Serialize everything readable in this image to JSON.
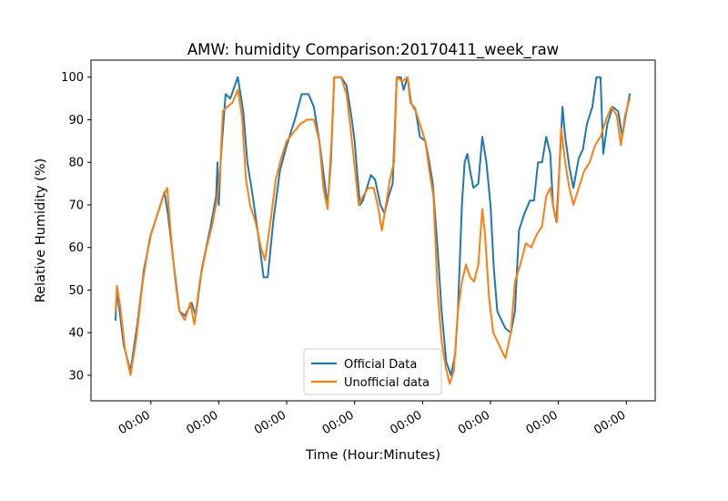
{
  "chart_data": {
    "type": "line",
    "title": "AMW: humidity Comparison:20170411_week_raw",
    "xlabel": "Time (Hour:Minutes)",
    "ylabel": "Relative Humidity (%)",
    "xlim": [
      -0.52,
      7.05
    ],
    "ylim": [
      24,
      104
    ],
    "x_ticks": [
      0,
      1,
      2,
      3,
      4,
      5,
      6,
      7
    ],
    "x_tick_labels": [
      "00:00",
      "00:00",
      "00:00",
      "00:00",
      "00:00",
      "00:00",
      "00:00",
      "00:00"
    ],
    "y_ticks": [
      30,
      40,
      50,
      60,
      70,
      80,
      90,
      100
    ],
    "y_tick_labels": [
      "30",
      "40",
      "50",
      "60",
      "70",
      "80",
      "90",
      "100"
    ],
    "legend_position": "lower-center",
    "grid": false,
    "series": [
      {
        "name": "Official Data",
        "color": "#1f77b4",
        "points": [
          [
            -0.52,
            43
          ],
          [
            -0.5,
            50
          ],
          [
            -0.46,
            45
          ],
          [
            -0.4,
            37
          ],
          [
            -0.3,
            31
          ],
          [
            -0.2,
            42
          ],
          [
            -0.1,
            55
          ],
          [
            0,
            63
          ],
          [
            0.1,
            68
          ],
          [
            0.2,
            73
          ],
          [
            0.25,
            68
          ],
          [
            0.33,
            57
          ],
          [
            0.42,
            45
          ],
          [
            0.5,
            44
          ],
          [
            0.6,
            47
          ],
          [
            0.66,
            44
          ],
          [
            0.75,
            55
          ],
          [
            0.88,
            65
          ],
          [
            0.96,
            72
          ],
          [
            0.98,
            80
          ],
          [
            1.0,
            70
          ],
          [
            1.03,
            81
          ],
          [
            1.1,
            96
          ],
          [
            1.17,
            95
          ],
          [
            1.28,
            100
          ],
          [
            1.36,
            92
          ],
          [
            1.42,
            80
          ],
          [
            1.5,
            72
          ],
          [
            1.58,
            63
          ],
          [
            1.66,
            53
          ],
          [
            1.72,
            53
          ],
          [
            1.8,
            66
          ],
          [
            1.9,
            78
          ],
          [
            2.0,
            84
          ],
          [
            2.12,
            90
          ],
          [
            2.22,
            96
          ],
          [
            2.32,
            96
          ],
          [
            2.4,
            93
          ],
          [
            2.48,
            85
          ],
          [
            2.56,
            75
          ],
          [
            2.6,
            70
          ],
          [
            2.65,
            80
          ],
          [
            2.7,
            100
          ],
          [
            2.8,
            100
          ],
          [
            2.88,
            98
          ],
          [
            2.95,
            91
          ],
          [
            3.0,
            85
          ],
          [
            3.04,
            77
          ],
          [
            3.08,
            70
          ],
          [
            3.12,
            71
          ],
          [
            3.18,
            74
          ],
          [
            3.24,
            77
          ],
          [
            3.3,
            76
          ],
          [
            3.38,
            70
          ],
          [
            3.44,
            68
          ],
          [
            3.5,
            72
          ],
          [
            3.56,
            75
          ],
          [
            3.62,
            100
          ],
          [
            3.68,
            100
          ],
          [
            3.72,
            97
          ],
          [
            3.78,
            100
          ],
          [
            3.83,
            94
          ],
          [
            3.9,
            92
          ],
          [
            3.96,
            86
          ],
          [
            4.04,
            85
          ],
          [
            4.1,
            80
          ],
          [
            4.15,
            75
          ],
          [
            4.22,
            60
          ],
          [
            4.28,
            45
          ],
          [
            4.35,
            33
          ],
          [
            4.42,
            30
          ],
          [
            4.48,
            35
          ],
          [
            4.52,
            45
          ],
          [
            4.58,
            70
          ],
          [
            4.62,
            80
          ],
          [
            4.66,
            82
          ],
          [
            4.7,
            78
          ],
          [
            4.75,
            74
          ],
          [
            4.82,
            75
          ],
          [
            4.88,
            86
          ],
          [
            4.94,
            80
          ],
          [
            5.0,
            70
          ],
          [
            5.05,
            55
          ],
          [
            5.1,
            45
          ],
          [
            5.16,
            43
          ],
          [
            5.22,
            41
          ],
          [
            5.3,
            40
          ],
          [
            5.36,
            45
          ],
          [
            5.42,
            64
          ],
          [
            5.5,
            68
          ],
          [
            5.58,
            71
          ],
          [
            5.64,
            71
          ],
          [
            5.7,
            80
          ],
          [
            5.76,
            80
          ],
          [
            5.82,
            86
          ],
          [
            5.88,
            82
          ],
          [
            5.92,
            70
          ],
          [
            5.97,
            66
          ],
          [
            6.02,
            80
          ],
          [
            6.06,
            93
          ],
          [
            6.1,
            86
          ],
          [
            6.16,
            79
          ],
          [
            6.22,
            74
          ],
          [
            6.3,
            81
          ],
          [
            6.36,
            83
          ],
          [
            6.42,
            89
          ],
          [
            6.5,
            93
          ],
          [
            6.56,
            100
          ],
          [
            6.62,
            100
          ],
          [
            6.66,
            82
          ],
          [
            6.72,
            89
          ],
          [
            6.8,
            93
          ],
          [
            6.88,
            92
          ],
          [
            6.94,
            86
          ],
          [
            6.98,
            90
          ],
          [
            7.05,
            96
          ]
        ]
      },
      {
        "name": "Unofficial data",
        "color": "#ff7f0e",
        "points": [
          [
            -0.52,
            45
          ],
          [
            -0.5,
            51
          ],
          [
            -0.45,
            46
          ],
          [
            -0.38,
            36
          ],
          [
            -0.3,
            30
          ],
          [
            -0.22,
            38
          ],
          [
            -0.12,
            52
          ],
          [
            -0.02,
            62
          ],
          [
            0.08,
            67
          ],
          [
            0.18,
            72
          ],
          [
            0.24,
            74
          ],
          [
            0.3,
            62
          ],
          [
            0.36,
            52
          ],
          [
            0.42,
            45
          ],
          [
            0.5,
            43
          ],
          [
            0.58,
            47
          ],
          [
            0.64,
            42
          ],
          [
            0.72,
            52
          ],
          [
            0.82,
            60
          ],
          [
            0.9,
            65
          ],
          [
            0.98,
            72
          ],
          [
            1.02,
            78
          ],
          [
            1.06,
            92
          ],
          [
            1.12,
            93
          ],
          [
            1.2,
            94
          ],
          [
            1.28,
            97
          ],
          [
            1.34,
            91
          ],
          [
            1.4,
            76
          ],
          [
            1.46,
            70
          ],
          [
            1.54,
            66
          ],
          [
            1.62,
            60
          ],
          [
            1.68,
            57
          ],
          [
            1.76,
            66
          ],
          [
            1.84,
            76
          ],
          [
            1.92,
            81
          ],
          [
            2.0,
            85
          ],
          [
            2.1,
            87
          ],
          [
            2.2,
            89
          ],
          [
            2.3,
            90
          ],
          [
            2.4,
            90
          ],
          [
            2.48,
            85
          ],
          [
            2.54,
            74
          ],
          [
            2.6,
            69
          ],
          [
            2.66,
            85
          ],
          [
            2.7,
            100
          ],
          [
            2.8,
            100
          ],
          [
            2.88,
            96
          ],
          [
            2.94,
            88
          ],
          [
            3.0,
            79
          ],
          [
            3.06,
            70
          ],
          [
            3.12,
            72
          ],
          [
            3.2,
            74
          ],
          [
            3.28,
            74
          ],
          [
            3.34,
            70
          ],
          [
            3.4,
            64
          ],
          [
            3.46,
            70
          ],
          [
            3.52,
            76
          ],
          [
            3.58,
            80
          ],
          [
            3.62,
            100
          ],
          [
            3.7,
            99
          ],
          [
            3.78,
            100
          ],
          [
            3.82,
            94
          ],
          [
            3.88,
            93
          ],
          [
            3.96,
            89
          ],
          [
            4.04,
            85
          ],
          [
            4.1,
            78
          ],
          [
            4.16,
            72
          ],
          [
            4.22,
            50
          ],
          [
            4.28,
            38
          ],
          [
            4.34,
            32
          ],
          [
            4.4,
            28
          ],
          [
            4.46,
            31
          ],
          [
            4.52,
            45
          ],
          [
            4.58,
            52
          ],
          [
            4.64,
            56
          ],
          [
            4.7,
            53
          ],
          [
            4.76,
            52
          ],
          [
            4.82,
            56
          ],
          [
            4.88,
            69
          ],
          [
            4.92,
            63
          ],
          [
            4.98,
            48
          ],
          [
            5.04,
            40
          ],
          [
            5.1,
            38
          ],
          [
            5.16,
            36
          ],
          [
            5.22,
            34
          ],
          [
            5.3,
            40
          ],
          [
            5.36,
            52
          ],
          [
            5.44,
            56
          ],
          [
            5.52,
            61
          ],
          [
            5.6,
            60
          ],
          [
            5.68,
            63
          ],
          [
            5.76,
            65
          ],
          [
            5.82,
            72
          ],
          [
            5.88,
            74
          ],
          [
            5.94,
            68
          ],
          [
            5.98,
            66
          ],
          [
            6.04,
            88
          ],
          [
            6.1,
            80
          ],
          [
            6.16,
            74
          ],
          [
            6.22,
            70
          ],
          [
            6.3,
            74
          ],
          [
            6.38,
            78
          ],
          [
            6.46,
            80
          ],
          [
            6.54,
            84
          ],
          [
            6.62,
            86
          ],
          [
            6.7,
            90
          ],
          [
            6.78,
            93
          ],
          [
            6.86,
            91
          ],
          [
            6.92,
            84
          ],
          [
            6.98,
            91
          ],
          [
            7.05,
            95
          ]
        ]
      }
    ]
  }
}
